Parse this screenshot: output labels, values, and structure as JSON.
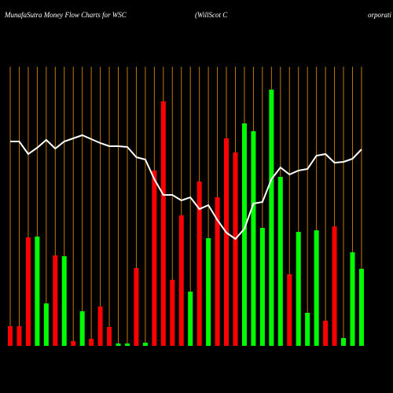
{
  "chart_data": {
    "type": "bar",
    "title": "MunafaSutra  Money Flow  Charts for WSC",
    "company": [
      "(WillScot C",
      "orporati"
    ],
    "values": [
      25,
      25,
      138,
      139,
      54,
      115,
      114,
      6,
      44,
      9,
      50,
      24,
      3,
      3,
      99,
      4,
      223,
      311,
      84,
      166,
      69,
      209,
      137,
      189,
      264,
      246,
      283,
      273,
      150,
      326,
      215,
      91,
      145,
      42,
      147,
      32,
      152,
      10,
      119,
      98
    ],
    "colors": [
      "#ff0000",
      "#ff0000",
      "#ff0000",
      "#00ff00",
      "#00ff00",
      "#ff0000",
      "#00ff00",
      "#ff0000",
      "#00ff00",
      "#ff0000",
      "#ff0000",
      "#ff0000",
      "#00ff00",
      "#00ff00",
      "#ff0000",
      "#00ff00",
      "#ff0000",
      "#ff0000",
      "#ff0000",
      "#ff0000",
      "#00ff00",
      "#ff0000",
      "#00ff00",
      "#ff0000",
      "#ff0000",
      "#ff0000",
      "#00ff00",
      "#00ff00",
      "#00ff00",
      "#00ff00",
      "#00ff00",
      "#ff0000",
      "#00ff00",
      "#00ff00",
      "#00ff00",
      "#ff0000",
      "#ff0000",
      "#00ff00",
      "#00ff00",
      "#00ff00"
    ],
    "line": {
      "color": "#ffffff",
      "values": [
        260,
        260,
        244,
        252,
        262,
        251,
        260,
        264,
        268,
        263,
        258,
        254,
        254,
        253,
        240,
        237,
        212,
        192,
        192,
        185,
        189,
        174,
        179,
        160,
        144,
        136,
        149,
        181,
        183,
        212,
        227,
        218,
        223,
        225,
        242,
        244,
        233,
        234,
        238,
        250
      ]
    },
    "grid_color": "#c07800",
    "ylim": [
      0,
      355
    ]
  }
}
